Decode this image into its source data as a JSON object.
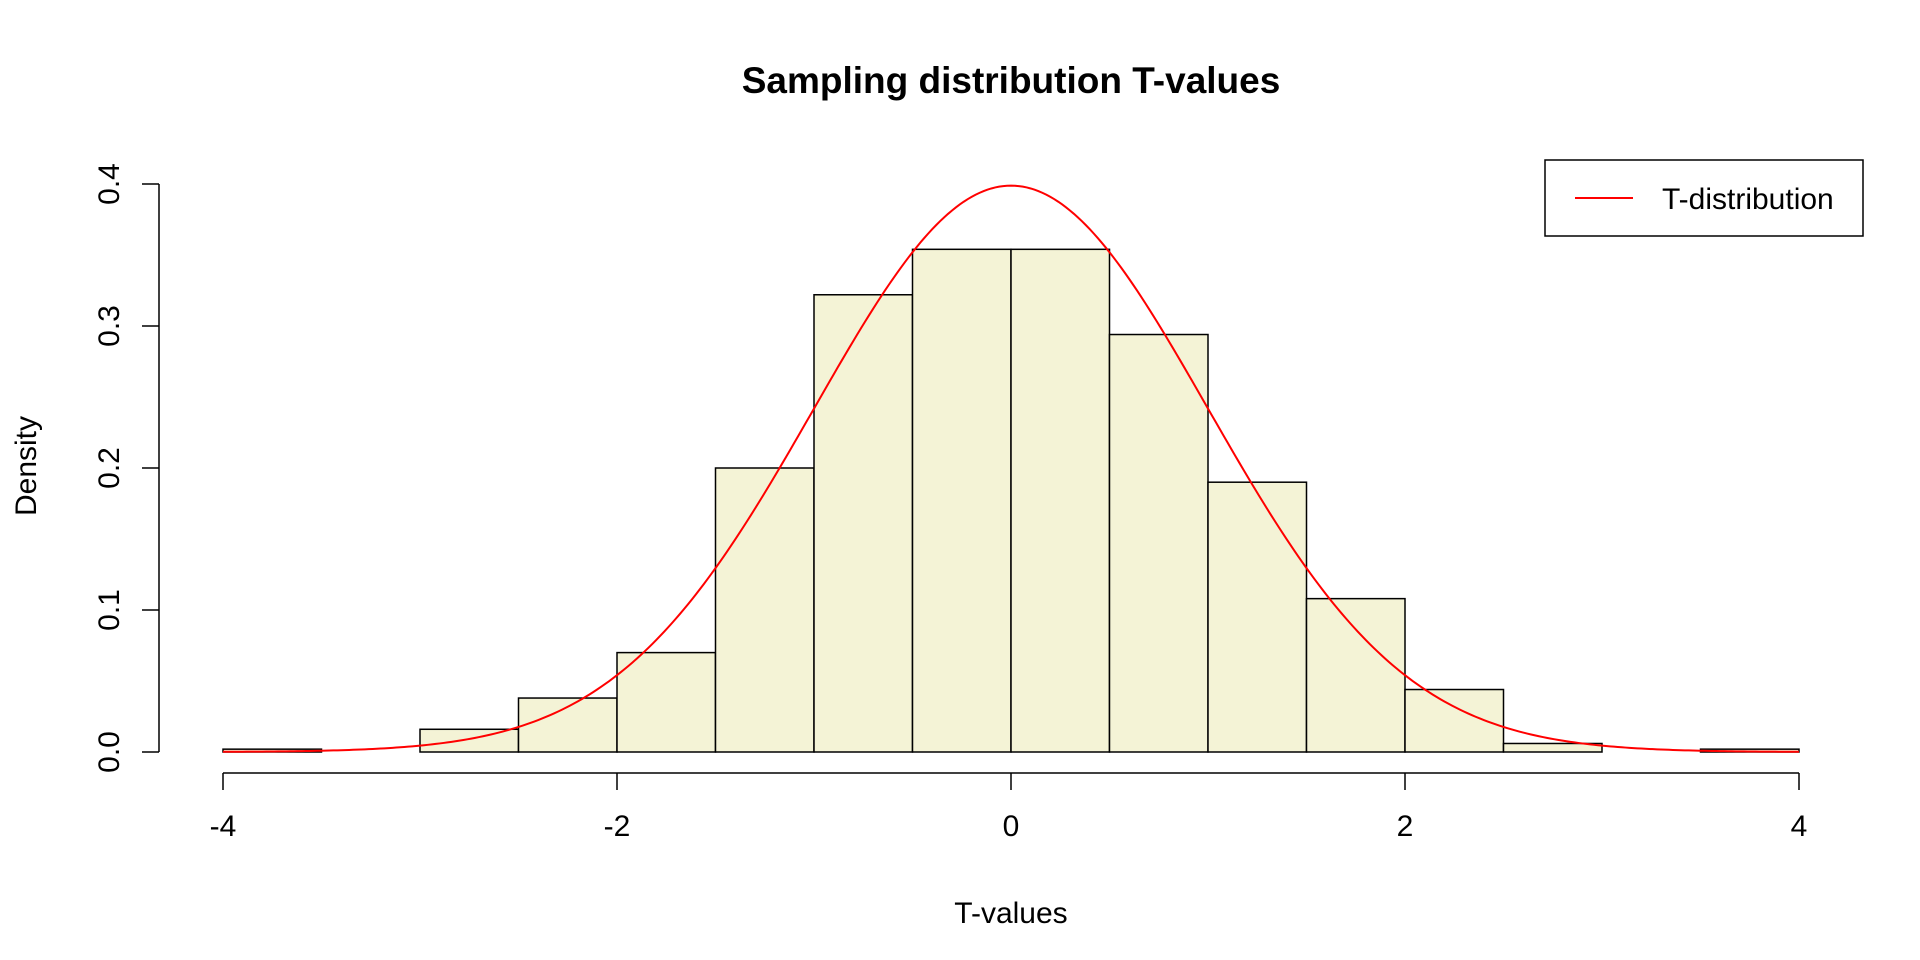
{
  "chart_data": {
    "type": "bar",
    "subtype": "histogram",
    "title": "Sampling distribution T-values",
    "xlabel": "T-values",
    "ylabel": "Density",
    "xlim": [
      -4,
      4
    ],
    "ylim": [
      0,
      0.4
    ],
    "x_ticks": [
      -4,
      -2,
      0,
      2,
      4
    ],
    "x_tick_labels": [
      "-4",
      "-2",
      "0",
      "2",
      "4"
    ],
    "y_ticks": [
      0,
      0.1,
      0.2,
      0.3,
      0.4
    ],
    "y_tick_labels": [
      "0.0",
      "0.1",
      "0.2",
      "0.3",
      "0.4"
    ],
    "grid": false,
    "bins": [
      {
        "x0": -4.0,
        "x1": -3.5,
        "density": 0.002
      },
      {
        "x0": -3.5,
        "x1": -3.0,
        "density": 0.0
      },
      {
        "x0": -3.0,
        "x1": -2.5,
        "density": 0.016
      },
      {
        "x0": -2.5,
        "x1": -2.0,
        "density": 0.038
      },
      {
        "x0": -2.0,
        "x1": -1.5,
        "density": 0.07
      },
      {
        "x0": -1.5,
        "x1": -1.0,
        "density": 0.2
      },
      {
        "x0": -1.0,
        "x1": -0.5,
        "density": 0.322
      },
      {
        "x0": -0.5,
        "x1": 0.0,
        "density": 0.354
      },
      {
        "x0": 0.0,
        "x1": 0.5,
        "density": 0.354
      },
      {
        "x0": 0.5,
        "x1": 1.0,
        "density": 0.294
      },
      {
        "x0": 1.0,
        "x1": 1.5,
        "density": 0.19
      },
      {
        "x0": 1.5,
        "x1": 2.0,
        "density": 0.108
      },
      {
        "x0": 2.0,
        "x1": 2.5,
        "density": 0.044
      },
      {
        "x0": 2.5,
        "x1": 3.0,
        "density": 0.006
      },
      {
        "x0": 3.0,
        "x1": 3.5,
        "density": 0.0
      },
      {
        "x0": 3.5,
        "x1": 4.0,
        "density": 0.002
      }
    ],
    "series": [
      {
        "name": "T-distribution",
        "type": "line",
        "color": "#ff0000",
        "curve": "t-density",
        "df": 1000
      }
    ],
    "bar_fill_color": "#f4f3d6",
    "bar_stroke_color": "#000000",
    "legend": {
      "position": "top-right",
      "entries": [
        {
          "label": "T-distribution",
          "color": "#ff0000"
        }
      ]
    }
  }
}
